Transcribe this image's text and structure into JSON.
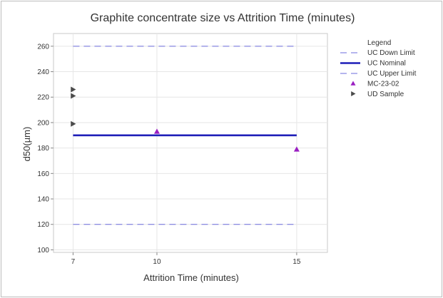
{
  "chart_data": {
    "type": "scatter",
    "title": "Graphite concentrate size vs Attrition Time (minutes)",
    "xlabel": "Attrition Time (minutes)",
    "ylabel": "d50(µm)",
    "xlim": [
      6.3,
      16.1
    ],
    "ylim": [
      98,
      270
    ],
    "x_ticks": [
      7,
      10,
      15
    ],
    "y_ticks": [
      100,
      120,
      140,
      160,
      180,
      200,
      220,
      240,
      260
    ],
    "grid": true,
    "legend_title": "Legend",
    "legend_position": "right",
    "reference_lines": [
      {
        "name": "UC Down Limit",
        "value": 260,
        "style": "dashed",
        "color": "#6b6bdc"
      },
      {
        "name": "UC Nominal",
        "value": 190,
        "style": "solid",
        "color": "#1f1fb8"
      },
      {
        "name": "UC Upper Limit",
        "value": 120,
        "style": "dashed",
        "color": "#6b6bdc"
      }
    ],
    "series": [
      {
        "name": "MC-23-02",
        "marker": "triangle-up",
        "color": "#9a1fc2",
        "points": [
          {
            "x": 10,
            "y": 193
          },
          {
            "x": 15,
            "y": 179
          }
        ]
      },
      {
        "name": "UD Sample",
        "marker": "triangle-right",
        "color": "#4a4a4a",
        "points": [
          {
            "x": 7,
            "y": 226
          },
          {
            "x": 7,
            "y": 221
          },
          {
            "x": 7,
            "y": 199
          }
        ]
      }
    ]
  }
}
